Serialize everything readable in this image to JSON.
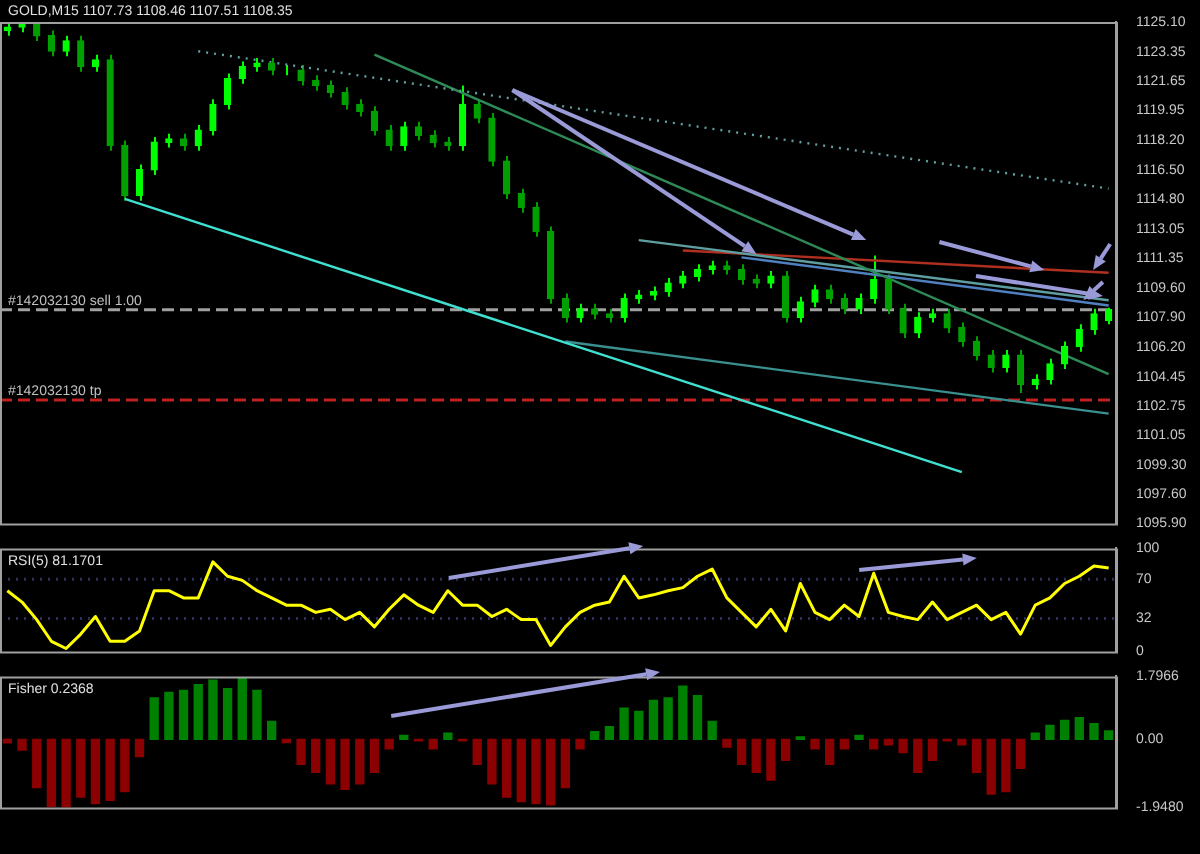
{
  "chart_data": [
    {
      "type": "candlestick",
      "title": "GOLD,M15 1107.73 1108.46 1107.51 1108.35",
      "tick_labels": "y",
      "colors": [
        "#00ff00",
        "#00ff00",
        "#00a000",
        "#00a000",
        "#00ff00",
        "#00a000",
        "#00ff00",
        "#00a000",
        "#00a000",
        "#00ff00",
        "#00ff00",
        "#00ff00",
        "#00a000",
        "#00ff00",
        "#00ff00",
        "#00ff00",
        "#00ff00",
        "#00ff00",
        "#00a000",
        "#00ff00",
        "#00a000",
        "#00a000",
        "#00a000",
        "#00a000",
        "#00a000",
        "#00a000",
        "#00a000",
        "#00ff00",
        "#00a000",
        "#00a000",
        "#00a000",
        "#00ff00",
        "#00a000",
        "#00a000",
        "#00a000",
        "#00a000",
        "#00a000",
        "#00a000",
        "#00a000",
        "#00ff00",
        "#00a000",
        "#00a000",
        "#00ff00",
        "#00ff00",
        "#00ff00",
        "#00ff00",
        "#00ff00",
        "#00ff00",
        "#00ff00",
        "#00a000",
        "#00a000",
        "#00a000",
        "#00ff00",
        "#00a000",
        "#00ff00",
        "#00ff00",
        "#00a000",
        "#00a000",
        "#00ff00",
        "#00ff00",
        "#00a000",
        "#00a000",
        "#00ff00",
        "#00ff00",
        "#00a000",
        "#00a000",
        "#00a000",
        "#00a000",
        "#00ff00",
        "#00a000",
        "#00ff00",
        "#00ff00",
        "#00ff00",
        "#00ff00",
        "#00ff00",
        "#00ff00"
      ],
      "categories": [
        null,
        null,
        null,
        null,
        null,
        null,
        null,
        null,
        null,
        null,
        null,
        null,
        null,
        null,
        null,
        null,
        null,
        null,
        null,
        null,
        null,
        null,
        null,
        null,
        null,
        null,
        null,
        null,
        null,
        null,
        null,
        null,
        null,
        null,
        null,
        null,
        null,
        null,
        null,
        null,
        null,
        null,
        null,
        null,
        null,
        null,
        null,
        null,
        null,
        null,
        null,
        null,
        null,
        null,
        null,
        null,
        null,
        null,
        null,
        null,
        null,
        null,
        null,
        null,
        null,
        null,
        null,
        null,
        null,
        null,
        null,
        null,
        null,
        null,
        null,
        null
      ],
      "ylim": [
        1095.9,
        1125.1
      ],
      "yticks": [
        {
          "value": 1125.1,
          "label": "1125.10"
        },
        {
          "value": 1123.35,
          "label": "1123.35"
        },
        {
          "value": 1121.65,
          "label": "1121.65"
        },
        {
          "value": 1119.95,
          "label": "1119.95"
        },
        {
          "value": 1118.2,
          "label": "1118.20"
        },
        {
          "value": 1116.5,
          "label": "1116.50"
        },
        {
          "value": 1114.8,
          "label": "1114.80"
        },
        {
          "value": 1113.05,
          "label": "1113.05"
        },
        {
          "value": 1111.35,
          "label": "1111.35"
        },
        {
          "value": 1109.6,
          "label": "1109.60"
        },
        {
          "value": 1107.9,
          "label": "1107.90"
        },
        {
          "value": 1106.2,
          "label": "1106.20"
        },
        {
          "value": 1104.45,
          "label": "1104.45"
        },
        {
          "value": 1102.75,
          "label": "1102.75"
        },
        {
          "value": 1101.05,
          "label": "1101.05"
        },
        {
          "value": 1099.3,
          "label": "1099.30"
        },
        {
          "value": 1097.6,
          "label": "1097.60"
        },
        {
          "value": 1095.9,
          "label": "1095.90"
        }
      ],
      "ohlc": [
        [
          1124.6,
          1125.0,
          1124.3,
          1124.8
        ],
        [
          1124.8,
          1125.1,
          1124.5,
          1125.0
        ],
        [
          1125.0,
          1125.1,
          1124.0,
          1124.3
        ],
        [
          1124.3,
          1124.6,
          1123.1,
          1123.4
        ],
        [
          1123.4,
          1124.3,
          1123.1,
          1124.0
        ],
        [
          1124.0,
          1124.3,
          1122.2,
          1122.5
        ],
        [
          1122.5,
          1123.2,
          1122.2,
          1122.9
        ],
        [
          1122.9,
          1123.2,
          1117.6,
          1117.9
        ],
        [
          1117.9,
          1118.2,
          1114.7,
          1115.0
        ],
        [
          1115.0,
          1116.8,
          1114.7,
          1116.5
        ],
        [
          1116.5,
          1118.4,
          1116.2,
          1118.1
        ],
        [
          1118.1,
          1118.6,
          1117.8,
          1118.3
        ],
        [
          1118.3,
          1118.6,
          1117.6,
          1117.9
        ],
        [
          1117.9,
          1119.1,
          1117.6,
          1118.8
        ],
        [
          1118.8,
          1120.6,
          1118.5,
          1120.3
        ],
        [
          1120.3,
          1122.1,
          1120.0,
          1121.8
        ],
        [
          1121.8,
          1122.8,
          1121.5,
          1122.5
        ],
        [
          1122.5,
          1123.0,
          1122.2,
          1122.7
        ],
        [
          1122.7,
          1123.0,
          1122.0,
          1122.3
        ],
        [
          1122.3,
          1122.6,
          1122.0,
          1122.3
        ],
        [
          1122.3,
          1122.6,
          1121.4,
          1121.7
        ],
        [
          1121.7,
          1122.0,
          1121.1,
          1121.4
        ],
        [
          1121.4,
          1121.7,
          1120.7,
          1121.0
        ],
        [
          1121.0,
          1121.3,
          1120.0,
          1120.3
        ],
        [
          1120.3,
          1120.6,
          1119.6,
          1119.9
        ],
        [
          1119.9,
          1120.2,
          1118.5,
          1118.8
        ],
        [
          1118.8,
          1119.1,
          1117.6,
          1117.9
        ],
        [
          1117.9,
          1119.3,
          1117.6,
          1119.0
        ],
        [
          1119.0,
          1119.3,
          1118.2,
          1118.5
        ],
        [
          1118.5,
          1118.8,
          1117.8,
          1118.1
        ],
        [
          1118.1,
          1118.4,
          1117.6,
          1117.9
        ],
        [
          1117.9,
          1121.4,
          1117.6,
          1120.3
        ],
        [
          1120.3,
          1120.6,
          1119.2,
          1119.5
        ],
        [
          1119.5,
          1119.8,
          1116.7,
          1117.0
        ],
        [
          1117.0,
          1117.3,
          1114.8,
          1115.1
        ],
        [
          1115.1,
          1115.4,
          1114.0,
          1114.3
        ],
        [
          1114.3,
          1114.6,
          1112.6,
          1112.9
        ],
        [
          1112.9,
          1113.2,
          1108.7,
          1109.0
        ],
        [
          1109.0,
          1109.3,
          1107.6,
          1107.9
        ],
        [
          1107.9,
          1108.7,
          1107.6,
          1108.4
        ],
        [
          1108.4,
          1108.7,
          1107.8,
          1108.1
        ],
        [
          1108.1,
          1108.4,
          1107.6,
          1107.9
        ],
        [
          1107.9,
          1109.3,
          1107.6,
          1109.0
        ],
        [
          1109.0,
          1109.5,
          1108.7,
          1109.2
        ],
        [
          1109.2,
          1109.7,
          1108.9,
          1109.4
        ],
        [
          1109.4,
          1110.2,
          1109.1,
          1109.9
        ],
        [
          1109.9,
          1110.6,
          1109.6,
          1110.3
        ],
        [
          1110.3,
          1111.0,
          1110.0,
          1110.7
        ],
        [
          1110.7,
          1111.2,
          1110.4,
          1110.9
        ],
        [
          1110.9,
          1111.2,
          1110.4,
          1110.7
        ],
        [
          1110.7,
          1111.0,
          1109.8,
          1110.1
        ],
        [
          1110.1,
          1110.4,
          1109.6,
          1109.9
        ],
        [
          1109.9,
          1110.6,
          1109.6,
          1110.3
        ],
        [
          1110.3,
          1110.6,
          1107.6,
          1107.9
        ],
        [
          1107.9,
          1109.1,
          1107.6,
          1108.8
        ],
        [
          1108.8,
          1109.8,
          1108.5,
          1109.5
        ],
        [
          1109.5,
          1109.8,
          1108.7,
          1109.0
        ],
        [
          1109.0,
          1109.3,
          1108.1,
          1108.4
        ],
        [
          1108.4,
          1109.3,
          1108.1,
          1109.0
        ],
        [
          1109.0,
          1111.5,
          1108.7,
          1110.1
        ],
        [
          1110.1,
          1110.4,
          1108.1,
          1108.4
        ],
        [
          1108.4,
          1108.7,
          1106.7,
          1107.0
        ],
        [
          1107.0,
          1108.2,
          1106.7,
          1107.9
        ],
        [
          1107.9,
          1108.4,
          1107.6,
          1108.1
        ],
        [
          1108.1,
          1108.4,
          1107.0,
          1107.3
        ],
        [
          1107.3,
          1107.6,
          1106.2,
          1106.5
        ],
        [
          1106.5,
          1106.8,
          1105.4,
          1105.7
        ],
        [
          1105.7,
          1106.0,
          1104.7,
          1105.0
        ],
        [
          1105.0,
          1106.0,
          1104.7,
          1105.7
        ],
        [
          1105.7,
          1106.0,
          1103.5,
          1104.0
        ],
        [
          1104.0,
          1104.6,
          1103.7,
          1104.3
        ],
        [
          1104.3,
          1105.5,
          1104.0,
          1105.2
        ],
        [
          1105.2,
          1106.5,
          1104.9,
          1106.2
        ],
        [
          1106.2,
          1107.5,
          1105.9,
          1107.2
        ],
        [
          1107.2,
          1108.4,
          1106.9,
          1108.1
        ],
        [
          1107.73,
          1108.46,
          1107.51,
          1108.35
        ]
      ],
      "series": [
        {
          "type": "line",
          "values": [
            null,
            null,
            null,
            null,
            null,
            null,
            null,
            null,
            1114.8,
            null,
            null,
            null,
            null,
            null,
            null,
            null,
            null,
            null,
            null,
            null,
            null,
            null,
            null,
            null,
            null,
            null,
            null,
            null,
            null,
            null,
            null,
            null,
            null,
            null,
            null,
            null,
            null,
            null,
            null,
            null,
            null,
            null,
            null,
            null,
            null,
            null,
            null,
            null,
            null,
            null,
            null,
            null,
            null,
            null,
            null,
            null,
            null,
            null,
            null,
            null,
            null,
            null,
            null,
            null,
            null,
            1098.9,
            null,
            null,
            null,
            null,
            null,
            null,
            null,
            null,
            null,
            null
          ],
          "color": "#40e0d0",
          "line_style": "solid"
        },
        {
          "type": "line",
          "values": [
            null,
            null,
            null,
            null,
            null,
            null,
            null,
            null,
            null,
            null,
            null,
            null,
            null,
            1123.4,
            null,
            null,
            null,
            null,
            null,
            null,
            null,
            null,
            null,
            null,
            null,
            null,
            null,
            null,
            null,
            null,
            null,
            null,
            null,
            null,
            null,
            null,
            null,
            null,
            null,
            null,
            null,
            null,
            null,
            null,
            null,
            null,
            null,
            null,
            null,
            null,
            null,
            null,
            null,
            null,
            null,
            null,
            null,
            null,
            null,
            null,
            null,
            null,
            null,
            null,
            null,
            null,
            null,
            null,
            null,
            null,
            null,
            null,
            null,
            null,
            null,
            1115.4
          ],
          "color": "#5fa0a0",
          "line_style": "dotted"
        },
        {
          "type": "line",
          "values": [
            null,
            null,
            null,
            null,
            null,
            null,
            null,
            null,
            null,
            null,
            null,
            null,
            null,
            null,
            null,
            null,
            null,
            null,
            null,
            null,
            null,
            null,
            null,
            null,
            null,
            1123.2,
            null,
            null,
            null,
            null,
            null,
            null,
            null,
            null,
            null,
            null,
            null,
            null,
            null,
            null,
            null,
            null,
            null,
            null,
            null,
            null,
            null,
            null,
            null,
            null,
            null,
            null,
            null,
            null,
            null,
            null,
            null,
            null,
            null,
            null,
            null,
            null,
            null,
            null,
            null,
            null,
            null,
            null,
            null,
            null,
            null,
            null,
            null,
            null,
            null,
            1104.6
          ],
          "color": "#2e8b57",
          "line_style": "solid"
        },
        {
          "type": "line",
          "values": [
            null,
            null,
            null,
            null,
            null,
            null,
            null,
            null,
            null,
            null,
            null,
            null,
            null,
            null,
            null,
            null,
            null,
            null,
            null,
            null,
            null,
            null,
            null,
            null,
            null,
            null,
            null,
            null,
            null,
            null,
            null,
            null,
            null,
            null,
            null,
            null,
            null,
            null,
            null,
            null,
            null,
            null,
            null,
            1112.4,
            null,
            null,
            null,
            null,
            null,
            null,
            null,
            null,
            null,
            null,
            null,
            null,
            null,
            null,
            null,
            null,
            null,
            null,
            null,
            null,
            null,
            null,
            null,
            null,
            null,
            null,
            null,
            null,
            null,
            null,
            null,
            1108.9
          ],
          "color": "#5f9ea0",
          "line_style": "solid"
        },
        {
          "type": "line",
          "values": [
            null,
            null,
            null,
            null,
            null,
            null,
            null,
            null,
            null,
            null,
            null,
            null,
            null,
            null,
            null,
            null,
            null,
            null,
            null,
            null,
            null,
            null,
            null,
            null,
            null,
            null,
            null,
            null,
            null,
            null,
            null,
            null,
            null,
            null,
            null,
            null,
            null,
            null,
            null,
            null,
            null,
            null,
            null,
            null,
            null,
            null,
            null,
            null,
            null,
            null,
            1111.4,
            null,
            null,
            null,
            null,
            null,
            null,
            null,
            null,
            null,
            null,
            null,
            null,
            null,
            null,
            null,
            null,
            null,
            null,
            null,
            null,
            null,
            null,
            null,
            null,
            1108.6
          ],
          "color": "#5080c0",
          "line_style": "solid"
        },
        {
          "type": "line",
          "values": [
            null,
            null,
            null,
            null,
            null,
            null,
            null,
            null,
            null,
            null,
            null,
            null,
            null,
            null,
            null,
            null,
            null,
            null,
            null,
            null,
            null,
            null,
            null,
            null,
            null,
            null,
            null,
            null,
            null,
            null,
            null,
            null,
            null,
            null,
            null,
            null,
            null,
            null,
            null,
            null,
            null,
            null,
            null,
            null,
            null,
            null,
            1111.8,
            null,
            null,
            null,
            null,
            null,
            null,
            null,
            null,
            null,
            null,
            null,
            null,
            null,
            null,
            null,
            null,
            null,
            null,
            null,
            null,
            null,
            null,
            null,
            null,
            null,
            null,
            null,
            null,
            1110.5
          ],
          "color": "#b03020",
          "line_style": "solid"
        },
        {
          "type": "line",
          "values": [
            null,
            null,
            null,
            null,
            null,
            null,
            null,
            null,
            null,
            null,
            null,
            null,
            null,
            null,
            null,
            null,
            null,
            null,
            null,
            null,
            null,
            null,
            null,
            null,
            null,
            null,
            null,
            null,
            null,
            null,
            null,
            null,
            null,
            null,
            null,
            null,
            null,
            null,
            1106.5,
            null,
            null,
            null,
            null,
            null,
            null,
            null,
            null,
            null,
            null,
            null,
            null,
            null,
            null,
            null,
            null,
            null,
            null,
            null,
            null,
            null,
            null,
            null,
            null,
            null,
            null,
            null,
            null,
            null,
            null,
            null,
            null,
            null,
            null,
            null,
            null,
            1102.3
          ],
          "color": "#3a8f8f",
          "line_style": "solid"
        }
      ],
      "ref_lines": [
        {
          "axis": "y",
          "value": 1108.35,
          "label": "#142032130 sell 1.00",
          "color": "#a0a0a0",
          "line_style": "dashed"
        },
        {
          "axis": "y",
          "value": 1103.1,
          "label": "#142032130 tp",
          "color": "#c02020",
          "line_style": "dashed"
        }
      ]
    },
    {
      "type": "line",
      "title": "RSI(5) 81.1701",
      "color": "#ffff00",
      "tick_labels": "y",
      "categories": [
        null,
        null,
        null,
        null,
        null,
        null,
        null,
        null,
        null,
        null,
        null,
        null,
        null,
        null,
        null,
        null,
        null,
        null,
        null,
        null,
        null,
        null,
        null,
        null,
        null,
        null,
        null,
        null,
        null,
        null,
        null,
        null,
        null,
        null,
        null,
        null,
        null,
        null,
        null,
        null,
        null,
        null,
        null,
        null,
        null,
        null,
        null,
        null,
        null,
        null,
        null,
        null,
        null,
        null,
        null,
        null,
        null,
        null,
        null,
        null,
        null,
        null,
        null,
        null,
        null,
        null,
        null,
        null,
        null,
        null,
        null,
        null,
        null,
        null,
        null,
        null
      ],
      "ylim": [
        0,
        100
      ],
      "yticks": [
        100,
        70,
        32,
        0
      ],
      "values": [
        59,
        48,
        31,
        10,
        3,
        17,
        34,
        10,
        10,
        20,
        59,
        59,
        52,
        52,
        87,
        73,
        69,
        59,
        52,
        45,
        45,
        38,
        41,
        31,
        38,
        24,
        41,
        55,
        45,
        38,
        59,
        45,
        45,
        34,
        41,
        31,
        31,
        6,
        24,
        38,
        45,
        48,
        73,
        52,
        55,
        59,
        62,
        73,
        80,
        52,
        38,
        24,
        41,
        20,
        66,
        38,
        31,
        45,
        34,
        76,
        38,
        34,
        31,
        48,
        31,
        38,
        45,
        31,
        38,
        17,
        45,
        52,
        66,
        73,
        83,
        81
      ],
      "ref_lines": [
        {
          "axis": "y",
          "value": 70,
          "color": "#303060",
          "line_style": "dotted"
        },
        {
          "axis": "y",
          "value": 32,
          "color": "#303060",
          "line_style": "dotted"
        }
      ]
    },
    {
      "type": "bar",
      "title": "Fisher 0.2368",
      "tick_labels": "y",
      "categories": [
        null,
        null,
        null,
        null,
        null,
        null,
        null,
        null,
        null,
        null,
        null,
        null,
        null,
        null,
        null,
        null,
        null,
        null,
        null,
        null,
        null,
        null,
        null,
        null,
        null,
        null,
        null,
        null,
        null,
        null,
        null,
        null,
        null,
        null,
        null,
        null,
        null,
        null,
        null,
        null,
        null,
        null,
        null,
        null,
        null,
        null,
        null,
        null,
        null,
        null,
        null,
        null,
        null,
        null,
        null,
        null,
        null,
        null,
        null,
        null,
        null,
        null,
        null,
        null,
        null,
        null,
        null,
        null,
        null,
        null,
        null,
        null,
        null,
        null,
        null,
        null
      ],
      "ylim": [
        -1.948,
        1.7966
      ],
      "yticks": [
        {
          "value": 1.7966,
          "label": "1.7966"
        },
        {
          "value": 0,
          "label": "0.00"
        },
        {
          "value": -1.948,
          "label": "-1.9480"
        }
      ],
      "values": [
        -0.1,
        -0.31,
        -1.38,
        -1.92,
        -1.94,
        -1.65,
        -1.83,
        -1.74,
        -1.49,
        -0.49,
        1.18,
        1.34,
        1.4,
        1.56,
        1.69,
        1.45,
        1.74,
        1.4,
        0.51,
        -0.09,
        -0.71,
        -0.94,
        -1.27,
        -1.43,
        -1.27,
        -0.94,
        -0.27,
        0.11,
        -0.04,
        -0.27,
        0.18,
        -0.04,
        -0.71,
        -1.27,
        -1.65,
        -1.78,
        -1.83,
        -1.87,
        -1.38,
        -0.27,
        0.22,
        0.36,
        0.89,
        0.8,
        1.11,
        1.18,
        1.52,
        1.25,
        0.51,
        -0.22,
        -0.71,
        -0.94,
        -1.16,
        -0.6,
        0.07,
        -0.27,
        -0.71,
        -0.27,
        0.11,
        -0.27,
        -0.16,
        -0.38,
        -0.94,
        -0.6,
        -0.04,
        -0.16,
        -0.94,
        -1.56,
        -1.49,
        -0.83,
        0.18,
        0.4,
        0.54,
        0.62,
        0.45,
        0.24
      ],
      "colors": [
        "#8b0000",
        "#8b0000",
        "#8b0000",
        "#8b0000",
        "#8b0000",
        "#8b0000",
        "#8b0000",
        "#8b0000",
        "#8b0000",
        "#8b0000",
        "#008000",
        "#008000",
        "#008000",
        "#008000",
        "#008000",
        "#008000",
        "#008000",
        "#008000",
        "#008000",
        "#8b0000",
        "#8b0000",
        "#8b0000",
        "#8b0000",
        "#8b0000",
        "#8b0000",
        "#8b0000",
        "#8b0000",
        "#008000",
        "#8b0000",
        "#8b0000",
        "#008000",
        "#8b0000",
        "#8b0000",
        "#8b0000",
        "#8b0000",
        "#8b0000",
        "#8b0000",
        "#8b0000",
        "#8b0000",
        "#8b0000",
        "#008000",
        "#008000",
        "#008000",
        "#008000",
        "#008000",
        "#008000",
        "#008000",
        "#008000",
        "#008000",
        "#8b0000",
        "#8b0000",
        "#8b0000",
        "#8b0000",
        "#8b0000",
        "#008000",
        "#8b0000",
        "#8b0000",
        "#8b0000",
        "#008000",
        "#8b0000",
        "#8b0000",
        "#8b0000",
        "#8b0000",
        "#8b0000",
        "#8b0000",
        "#8b0000",
        "#8b0000",
        "#8b0000",
        "#8b0000",
        "#8b0000",
        "#008000",
        "#008000",
        "#008000",
        "#008000",
        "#008000",
        "#008000"
      ]
    }
  ]
}
